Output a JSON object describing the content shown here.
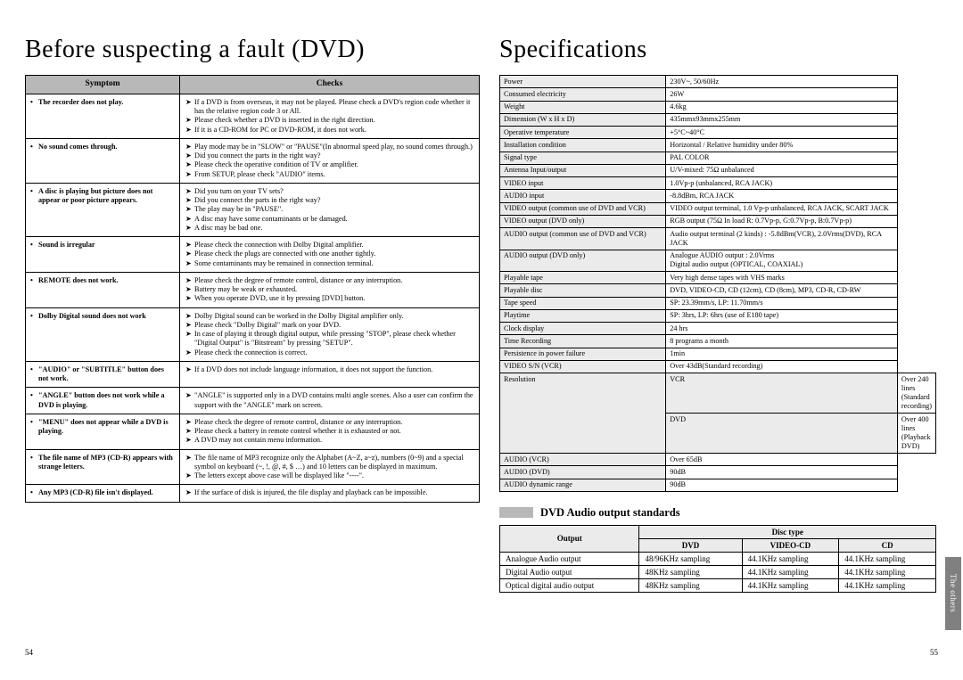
{
  "left": {
    "title": "Before suspecting a fault (DVD)",
    "headers": {
      "symptom": "Symptom",
      "checks": "Checks"
    },
    "rows": [
      {
        "symptom": "The recorder does not play.",
        "checks": [
          "If a DVD is from overseas, it may not be played. Please check a DVD's region code whether it has the relative region code 3 or All.",
          "Please check whether a DVD is inserted in the right direction.",
          "If it is a CD-ROM for PC or DVD-ROM, it does not work."
        ]
      },
      {
        "symptom": "No sound comes through.",
        "checks": [
          "Play mode may be in \"SLOW\" or \"PAUSE\"(In abnormal speed play, no sound comes through.)",
          "Did you connect the parts in the right way?",
          "Please check the operative condition of TV or amplifier.",
          "From SETUP, please check \"AUDIO\" items."
        ]
      },
      {
        "symptom": "A disc is playing but picture does not appear or poor picture appears.",
        "checks": [
          "Did you turn on your TV sets?",
          "Did you connect the parts in the right way?",
          "The play may be in \"PAUSE\".",
          "A disc may have some contaminants or be damaged.",
          "A disc may be bad one."
        ]
      },
      {
        "symptom": "Sound is irregular",
        "checks": [
          "Please check the connection with Dolby Digital amplifier.",
          "Please check the plugs are connected with one another tightly.",
          "Some contaminants may be remained in connection terminal."
        ]
      },
      {
        "symptom": "REMOTE does not work.",
        "checks": [
          "Please check the degree of remote control, distance or any interruption.",
          "Battery may be weak or exhausted.",
          "When you operate DVD, use it by pressing [DVD] button."
        ]
      },
      {
        "symptom": "Dolby Digital sound does not work",
        "checks": [
          "Dolby Digital sound can be worked in the Dolby Digital amplifier only.",
          "Please check \"Dolby Digital\" mark on your DVD.",
          "In case of playing it through digital output, while pressing \"STOP\", please check whether \"Digital Output\" is \"Bitstream\" by pressing \"SETUP\".",
          "Please check the connection is correct."
        ]
      },
      {
        "symptom": "\"AUDIO\" or \"SUBTITLE\" button does not work.",
        "checks": [
          "If a DVD does not include language information, it does not support the function."
        ]
      },
      {
        "symptom": "\"ANGLE\" button does not work while a DVD is playing.",
        "checks": [
          "\"ANGLE\" is supported only in a DVD contains multi angle scenes. Also a user can confirm the support with the \"ANGLE\" mark on screen."
        ]
      },
      {
        "symptom": "\"MENU\" does not appear while a DVD is playing.",
        "checks": [
          "Please check the degree of remote control, distance or any interruption.",
          "Please check a battery in remote control whether it is exhausted or not.",
          "A DVD may not contain menu information."
        ]
      },
      {
        "symptom": "The file name of MP3 (CD-R) appears with strange letters.",
        "checks": [
          "The file name of MP3 recognize only the Alphabet (A~Z, a~z), numbers (0~9) and a special symbol on keyboard (~, !, @, #, $ …) and 10 letters can be displayed in maximum.",
          "The letters except above case will be displayed like \"----\"."
        ]
      },
      {
        "symptom": "Any MP3 (CD-R) file isn't displayed.",
        "checks": [
          "If the surface of disk is injured, the file display and playback can be impossible."
        ]
      }
    ],
    "pagenum": "54"
  },
  "right": {
    "title": "Specifications",
    "specs": [
      {
        "label": "Power",
        "value": "230V~, 50/60Hz"
      },
      {
        "label": "Consumed electricity",
        "value": "26W"
      },
      {
        "label": "Weight",
        "value": "4.6kg"
      },
      {
        "label": "Dimension (W x H x D)",
        "value": "435mmx93mmx255mm"
      },
      {
        "label": "Operative temperature",
        "value": "+5°C~40°C"
      },
      {
        "label": "Installation condition",
        "value": "Horizontal / Relative humidity under 80%"
      },
      {
        "label": "Signal type",
        "value": "PAL COLOR"
      },
      {
        "label": "Antenna Input/output",
        "value": "U/V-mixed: 75Ω unbalanced"
      },
      {
        "label": "VIDEO input",
        "value": "1.0Vp-p (unbalanced, RCA JACK)"
      },
      {
        "label": "AUDIO input",
        "value": "-8.8dBm, RCA JACK"
      },
      {
        "label": "VIDEO output (common use of DVD and VCR)",
        "value": "VIDEO output terminal, 1.0 Vp-p unbalanced, RCA JACK, SCART JACK"
      },
      {
        "label": "VIDEO output (DVD only)",
        "value": "RGB output (75Ω In load R: 0.7Vp-p, G:0.7Vp-p, B:0.7Vp-p)"
      },
      {
        "label": "AUDIO output (common use of DVD and VCR)",
        "value": "Audio output terminal (2 kinds) : -5.8dBm(VCR), 2.0Vrms(DVD), RCA JACK"
      },
      {
        "label": "AUDIO output (DVD only)",
        "value": "Analogue AUDIO output : 2.0Vrms\nDigital audio output (OPTICAL, COAXIAL)"
      },
      {
        "label": "Playable tape",
        "value": "Very high dense tapes with VHS marks"
      },
      {
        "label": "Playable disc",
        "value": "DVD, VIDEO-CD, CD (12cm), CD (8cm), MP3, CD-R, CD-RW"
      },
      {
        "label": "Tape speed",
        "value": "SP: 23.39mm/s, LP: 11.70mm/s"
      },
      {
        "label": "Playtime",
        "value": "SP: 3hrs, LP: 6hrs (use of E180 tape)"
      },
      {
        "label": "Clock display",
        "value": "24 hrs"
      },
      {
        "label": "Time Recording",
        "value": "8 programs a month"
      },
      {
        "label": "Persistence in power failure",
        "value": "1min"
      },
      {
        "label": "VIDEO S/N (VCR)",
        "value": "Over 43dB(Standard recording)"
      }
    ],
    "resolution_label": "Resolution",
    "resolution_sub": [
      {
        "sub": "VCR",
        "value": "Over 240 lines (Standard recording)"
      },
      {
        "sub": "DVD",
        "value": "Over 400 lines (Playback DVD)"
      }
    ],
    "specs_tail": [
      {
        "label": "AUDIO (VCR)",
        "value": "Over 65dB"
      },
      {
        "label": "AUDIO (DVD)",
        "value": "90dB"
      },
      {
        "label": "AUDIO dynamic range",
        "value": "90dB"
      }
    ],
    "subheading": "DVD Audio output standards",
    "output_table": {
      "head_output": "Output",
      "head_disc": "Disc type",
      "cols": [
        "DVD",
        "VIDEO-CD",
        "CD"
      ],
      "rows": [
        {
          "name": "Analogue Audio output",
          "vals": [
            "48/96KHz sampling",
            "44.1KHz sampling",
            "44.1KHz sampling"
          ]
        },
        {
          "name": "Digital Audio output",
          "vals": [
            "48KHz sampling",
            "44.1KHz sampling",
            "44.1KHz sampling"
          ]
        },
        {
          "name": "Optical digital audio output",
          "vals": [
            "48KHz sampling",
            "44.1KHz sampling",
            "44.1KHz sampling"
          ]
        }
      ]
    },
    "pagenum": "55",
    "sidetab": "The others"
  },
  "colors": {
    "header_bg": "#b8b8b8",
    "cell_bg": "#ebebeb",
    "sidetab_bg": "#808080"
  }
}
